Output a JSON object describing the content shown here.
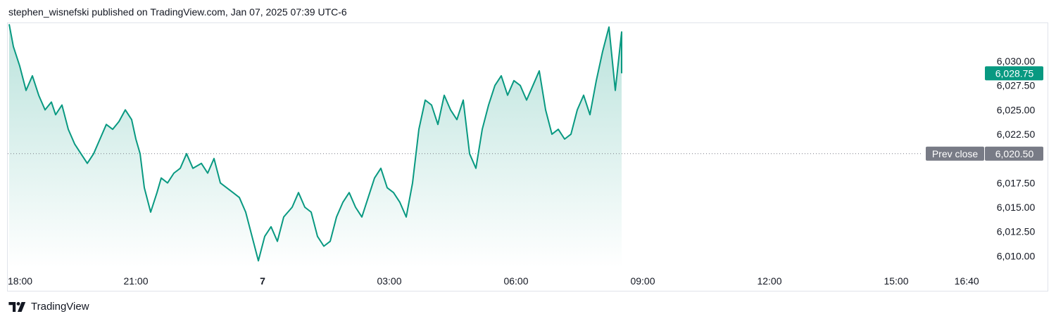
{
  "header": {
    "attribution": "stephen_wisnefski published on TradingView.com, Jan 07, 2025 07:39 UTC-6"
  },
  "footer": {
    "brand": "TradingView",
    "logo_icon": "tradingview-logo-icon"
  },
  "colors": {
    "line": "#089981",
    "area_top": "#089981",
    "price_tag": "#089981",
    "prev_close_tag": "#787b86",
    "prev_close_line": "#787b86"
  },
  "chart_data": {
    "type": "area",
    "ylim": [
      6008.8,
      6033.9
    ],
    "y_ticks": [
      6030.0,
      6027.5,
      6025.0,
      6022.5,
      6017.5,
      6015.0,
      6012.5,
      6010.0
    ],
    "y_tick_labels": [
      "6,030.00",
      "6,027.50",
      "6,025.00",
      "6,022.50",
      "6,017.50",
      "6,015.00",
      "6,012.50",
      "6,010.00"
    ],
    "x_range_hours": [
      0,
      23.2
    ],
    "x_ticks": [
      {
        "label": "18:00",
        "hours": 0,
        "bold": false
      },
      {
        "label": "21:00",
        "hours": 3,
        "bold": false
      },
      {
        "label": "7",
        "hours": 6,
        "bold": true
      },
      {
        "label": "03:00",
        "hours": 9,
        "bold": false
      },
      {
        "label": "06:00",
        "hours": 12,
        "bold": false
      },
      {
        "label": "09:00",
        "hours": 15,
        "bold": false
      },
      {
        "label": "12:00",
        "hours": 18,
        "bold": false
      },
      {
        "label": "15:00",
        "hours": 21,
        "bold": false
      },
      {
        "label": "16:40",
        "hours": 22.67,
        "bold": false
      }
    ],
    "last_price": 6028.75,
    "last_price_label": "6,028.75",
    "prev_close": 6020.5,
    "prev_close_value_label": "6,020.50",
    "prev_close_label": "Prev close",
    "series": [
      {
        "x": [
          0,
          0.1,
          0.25,
          0.4,
          0.55,
          0.7,
          0.85,
          1.0,
          1.1,
          1.25,
          1.4,
          1.55,
          1.7,
          1.85,
          2.0,
          2.15,
          2.3,
          2.45,
          2.6,
          2.75,
          2.9,
          3.0,
          3.1,
          3.2,
          3.35,
          3.5,
          3.6,
          3.75,
          3.9,
          4.05,
          4.2,
          4.35,
          4.55,
          4.7,
          4.85,
          5.0,
          5.15,
          5.3,
          5.45,
          5.6,
          5.75,
          5.9,
          6.05,
          6.2,
          6.35,
          6.5,
          6.7,
          6.85,
          7.0,
          7.15,
          7.3,
          7.45,
          7.6,
          7.75,
          7.9,
          8.05,
          8.2,
          8.35,
          8.5,
          8.65,
          8.8,
          8.95,
          9.1,
          9.25,
          9.4,
          9.55,
          9.7,
          9.85,
          10.0,
          10.15,
          10.3,
          10.45,
          10.6,
          10.75,
          10.9,
          11.05,
          11.2,
          11.35,
          11.5,
          11.65,
          11.8,
          11.95,
          12.1,
          12.25,
          12.4,
          12.55,
          12.7,
          12.85,
          13.0,
          13.15,
          13.3,
          13.45,
          13.6,
          13.75,
          13.9,
          14.05,
          14.2,
          14.35,
          14.5,
          14.5
        ],
        "y": [
          6033.8,
          6031.5,
          6029.5,
          6027.0,
          6028.5,
          6026.5,
          6025.0,
          6025.8,
          6024.5,
          6025.5,
          6023.0,
          6021.5,
          6020.5,
          6019.5,
          6020.5,
          6022.0,
          6023.5,
          6023.0,
          6023.8,
          6025.0,
          6024.0,
          6022.0,
          6020.5,
          6017.0,
          6014.5,
          6016.5,
          6018.0,
          6017.5,
          6018.5,
          6019.0,
          6020.5,
          6019.0,
          6019.5,
          6018.5,
          6020.0,
          6017.5,
          6017.0,
          6016.5,
          6016.0,
          6014.5,
          6012.0,
          6009.5,
          6012.0,
          6013.0,
          6011.5,
          6014.0,
          6015.0,
          6016.5,
          6015.0,
          6014.5,
          6012.0,
          6011.0,
          6011.5,
          6014.0,
          6015.5,
          6016.5,
          6015.0,
          6014.0,
          6016.0,
          6018.0,
          6019.0,
          6017.0,
          6016.5,
          6015.5,
          6014.0,
          6017.5,
          6023.0,
          6026.0,
          6025.5,
          6023.5,
          6026.5,
          6025.0,
          6024.0,
          6026.0,
          6020.5,
          6019.0,
          6023.0,
          6025.5,
          6027.5,
          6028.5,
          6026.5,
          6028.0,
          6027.5,
          6026.0,
          6027.5,
          6029.0,
          6025.0,
          6022.5,
          6023.0,
          6022.0,
          6022.5,
          6025.0,
          6026.5,
          6024.5,
          6028.0,
          6031.0,
          6033.5,
          6027.0,
          6033.0,
          6028.75
        ]
      }
    ]
  }
}
